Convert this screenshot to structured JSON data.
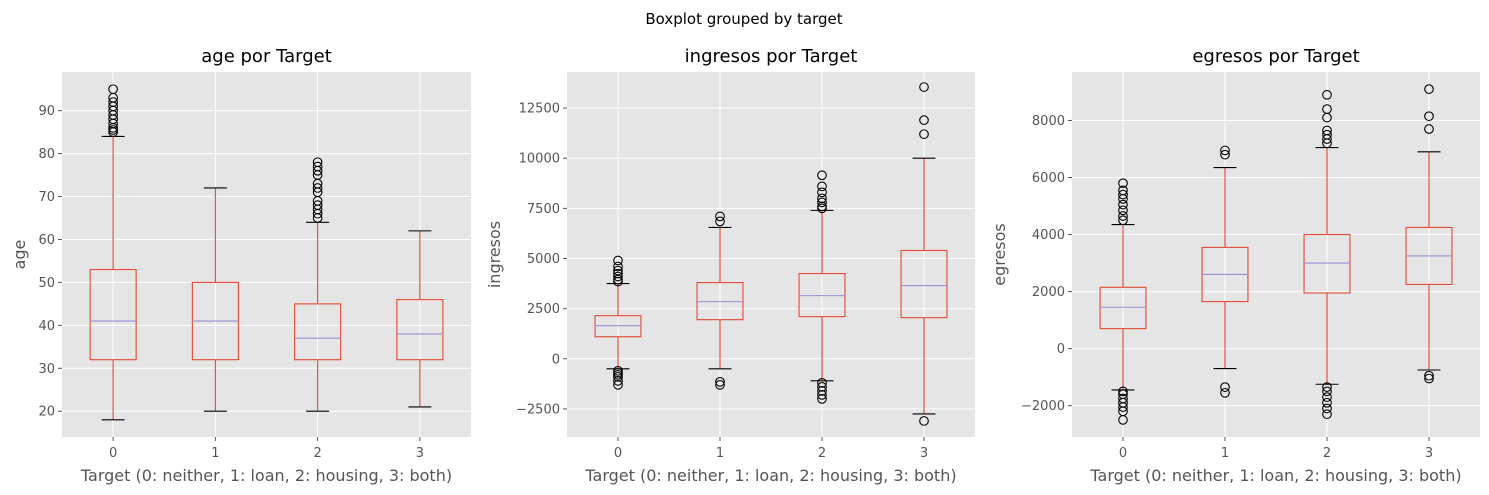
{
  "figure": {
    "suptitle": "Boxplot grouped by target",
    "colors": {
      "background": "#E5E5E5",
      "grid": "#FFFFFF",
      "box": "#E24A33",
      "median": "#8EBAE5",
      "median_alt": "#988ED5",
      "text": "#555555"
    }
  },
  "chart_data": [
    {
      "type": "boxplot",
      "title": "age por Target",
      "xlabel": "Target (0: neither, 1: loan, 2: housing, 3: both)",
      "ylabel": "age",
      "categories": [
        "0",
        "1",
        "2",
        "3"
      ],
      "ylim": [
        14,
        99
      ],
      "yticks": [
        20,
        30,
        40,
        50,
        60,
        70,
        80,
        90
      ],
      "ytick_labels": [
        "20",
        "30",
        "40",
        "50",
        "60",
        "70",
        "80",
        "90"
      ],
      "grid": true,
      "boxes": [
        {
          "whislo": 18,
          "q1": 32,
          "med": 41,
          "q3": 53,
          "whishi": 84,
          "fliers": [
            85,
            85.5,
            86,
            87,
            88,
            89,
            90,
            91,
            92,
            93,
            95
          ]
        },
        {
          "whislo": 20,
          "q1": 32,
          "med": 41,
          "q3": 50,
          "whishi": 72,
          "fliers": []
        },
        {
          "whislo": 20,
          "q1": 32,
          "med": 37,
          "q3": 45,
          "whishi": 64,
          "fliers": [
            65,
            66,
            67,
            68,
            69,
            71,
            72,
            73,
            75,
            76,
            77,
            78
          ]
        },
        {
          "whislo": 21,
          "q1": 32,
          "med": 38,
          "q3": 46,
          "whishi": 62,
          "fliers": []
        }
      ]
    },
    {
      "type": "boxplot",
      "title": "ingresos por Target",
      "xlabel": "Target (0: neither, 1: loan, 2: housing, 3: both)",
      "ylabel": "ingresos",
      "categories": [
        "0",
        "1",
        "2",
        "3"
      ],
      "ylim": [
        -3900,
        14300
      ],
      "yticks": [
        -2500,
        0,
        2500,
        5000,
        7500,
        10000,
        12500
      ],
      "ytick_labels": [
        "−2500",
        "0",
        "2500",
        "5000",
        "7500",
        "10000",
        "12500"
      ],
      "grid": true,
      "boxes": [
        {
          "whislo": -500,
          "q1": 1100,
          "med": 1650,
          "q3": 2150,
          "whishi": 3750,
          "fliers": [
            -1300,
            -1100,
            -900,
            -800,
            -700,
            -600,
            3850,
            3950,
            4100,
            4250,
            4400,
            4600,
            4900
          ]
        },
        {
          "whislo": -500,
          "q1": 1950,
          "med": 2850,
          "q3": 3800,
          "whishi": 6550,
          "fliers": [
            -1300,
            -1150,
            6850,
            7100
          ]
        },
        {
          "whislo": -1100,
          "q1": 2100,
          "med": 3150,
          "q3": 4250,
          "whishi": 7400,
          "fliers": [
            -2000,
            -1800,
            -1600,
            -1400,
            -1200,
            7500,
            7600,
            7800,
            8000,
            8300,
            8600,
            9150
          ]
        },
        {
          "whislo": -2750,
          "q1": 2050,
          "med": 3650,
          "q3": 5400,
          "whishi": 10000,
          "fliers": [
            -3100,
            11200,
            11900,
            13550
          ]
        }
      ]
    },
    {
      "type": "boxplot",
      "title": "egresos por Target",
      "xlabel": "Target (0: neither, 1: loan, 2: housing, 3: both)",
      "ylabel": "egresos",
      "categories": [
        "0",
        "1",
        "2",
        "3"
      ],
      "ylim": [
        -3100,
        9700
      ],
      "yticks": [
        -2000,
        0,
        2000,
        4000,
        6000,
        8000
      ],
      "ytick_labels": [
        "−2000",
        "0",
        "2000",
        "4000",
        "6000",
        "8000"
      ],
      "grid": true,
      "boxes": [
        {
          "whislo": -1450,
          "q1": 700,
          "med": 1450,
          "q3": 2150,
          "whishi": 4350,
          "fliers": [
            -2500,
            -2200,
            -2050,
            -1900,
            -1750,
            -1600,
            -1500,
            4500,
            4650,
            4850,
            5050,
            5250,
            5400,
            5550,
            5800
          ]
        },
        {
          "whislo": -700,
          "q1": 1650,
          "med": 2600,
          "q3": 3550,
          "whishi": 6350,
          "fliers": [
            -1550,
            -1350,
            6800,
            6950
          ]
        },
        {
          "whislo": -1250,
          "q1": 1950,
          "med": 3000,
          "q3": 4000,
          "whishi": 7050,
          "fliers": [
            -2300,
            -2100,
            -1900,
            -1700,
            -1500,
            -1350,
            7200,
            7350,
            7500,
            7650,
            8100,
            8400,
            8900
          ]
        },
        {
          "whislo": -750,
          "q1": 2250,
          "med": 3250,
          "q3": 4250,
          "whishi": 6900,
          "fliers": [
            -1050,
            -950,
            7700,
            8150,
            9100
          ]
        }
      ]
    }
  ]
}
